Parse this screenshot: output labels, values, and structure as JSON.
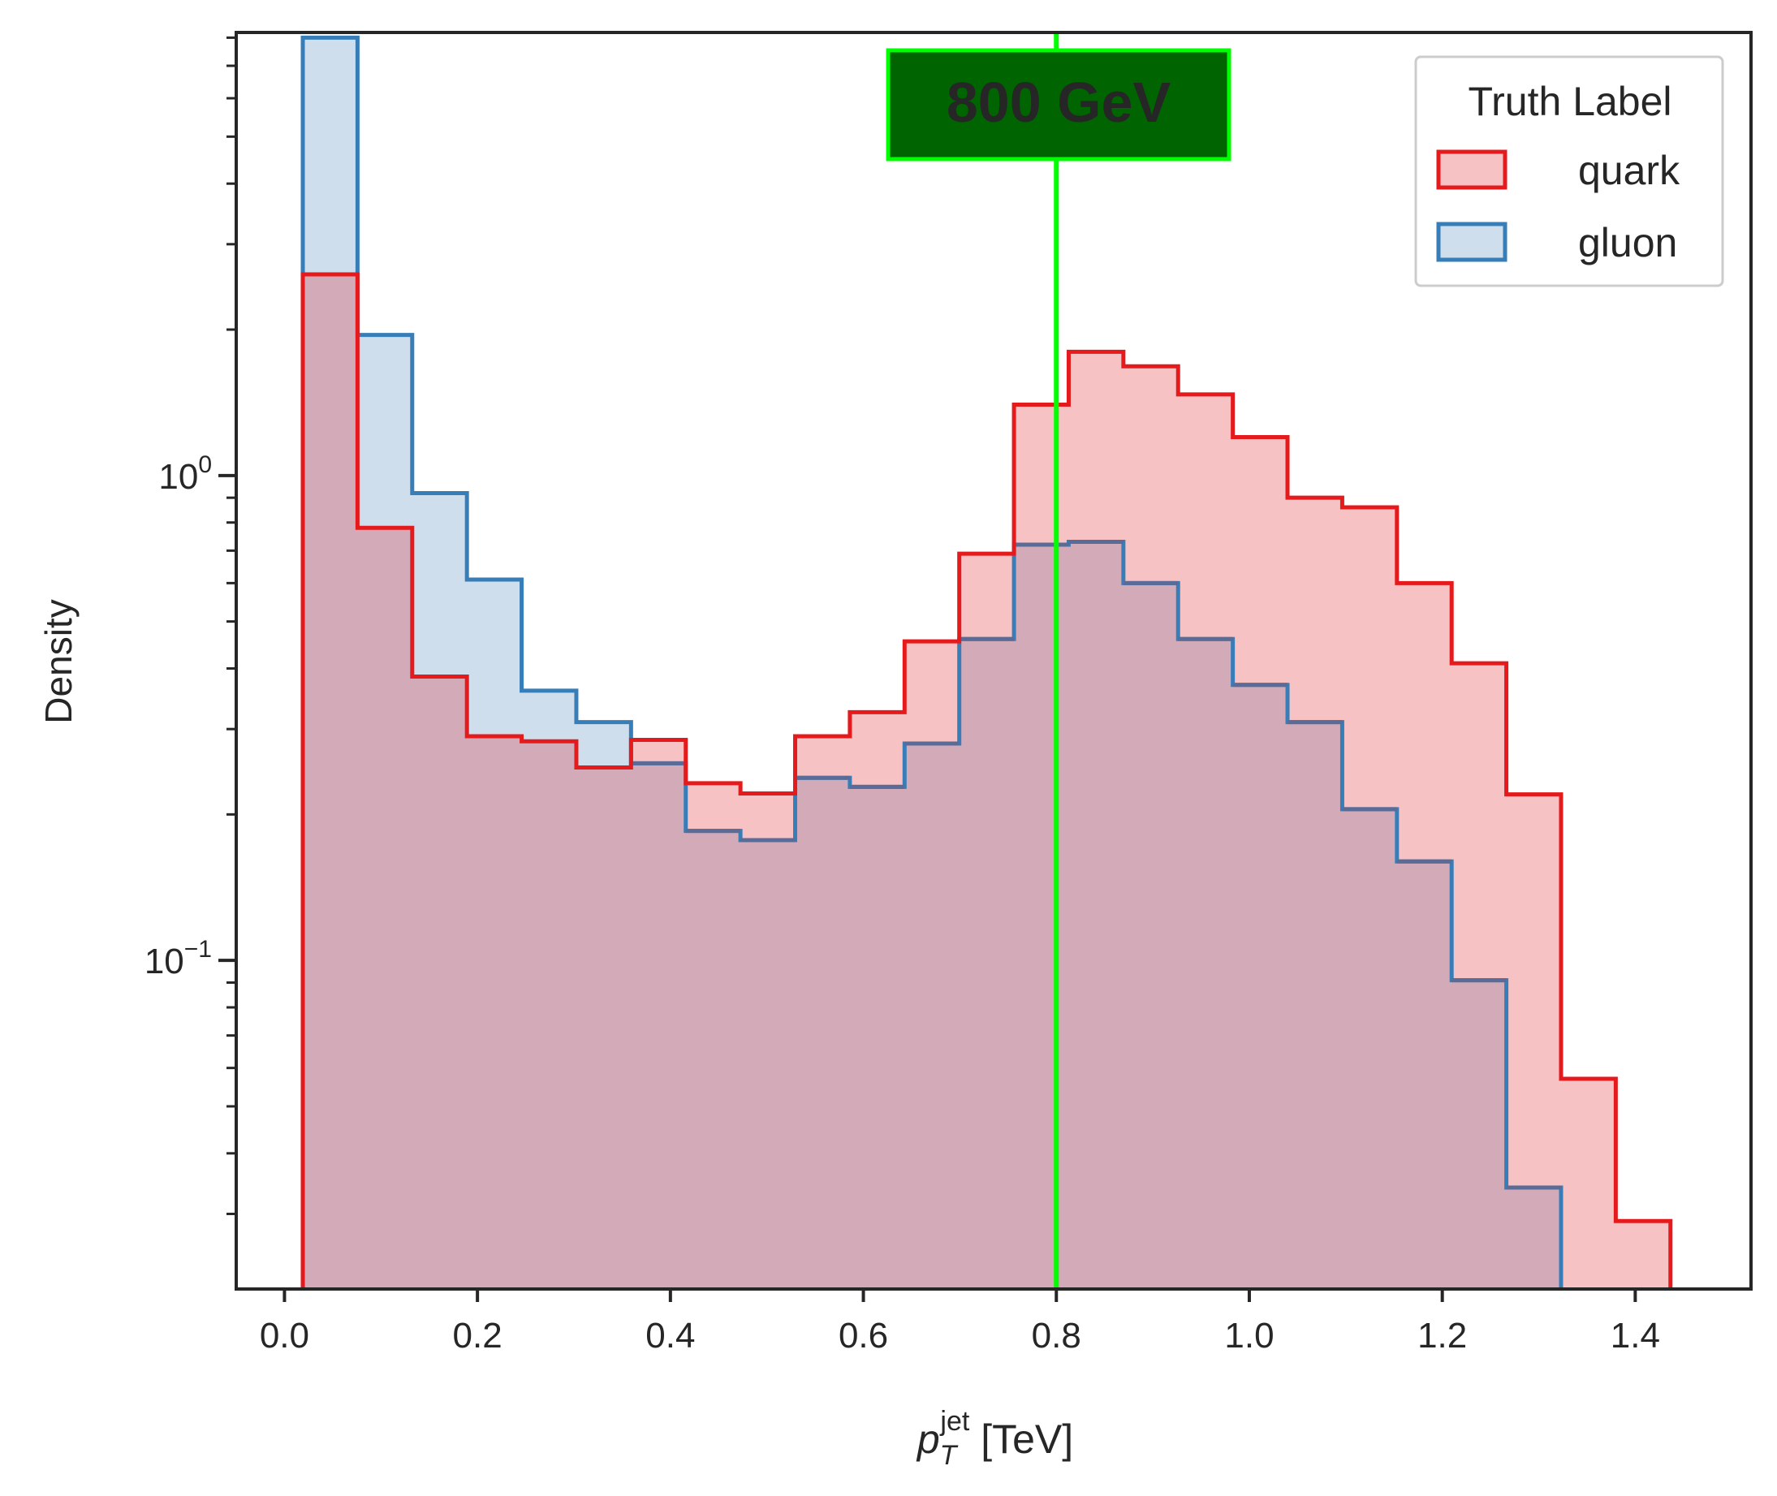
{
  "chart_data": {
    "type": "histogram",
    "xlabel_base": "p",
    "xlabel_sub": "T",
    "xlabel_sup": "jet",
    "xlabel_unit": "[TeV]",
    "ylabel": "Density",
    "xlim": [
      -0.05,
      1.52
    ],
    "ylim": [
      0.021,
      8.2
    ],
    "yscale": "log",
    "x_ticks": [
      0.0,
      0.2,
      0.4,
      0.6,
      0.8,
      1.0,
      1.2,
      1.4
    ],
    "x_tick_labels": [
      "0.0",
      "0.2",
      "0.4",
      "0.6",
      "0.8",
      "1.0",
      "1.2",
      "1.4"
    ],
    "y_major_ticks": [
      {
        "value": 0.1,
        "base": "10",
        "exp": "−1"
      },
      {
        "value": 1,
        "base": "10",
        "exp": "0"
      }
    ],
    "y_minor_ticks": [
      0.03,
      0.04,
      0.05,
      0.06,
      0.07,
      0.08,
      0.09,
      0.2,
      0.3,
      0.4,
      0.5,
      0.6,
      0.7,
      0.8,
      0.9,
      2,
      3,
      4,
      5,
      6,
      7,
      8
    ],
    "bin_edges": [
      0.019,
      0.0757,
      0.1324,
      0.1891,
      0.2458,
      0.3025,
      0.3592,
      0.4159,
      0.4726,
      0.5293,
      0.586,
      0.6427,
      0.6994,
      0.7561,
      0.8128,
      0.8695,
      0.9262,
      0.9829,
      1.0396,
      1.0963,
      1.153,
      1.2097,
      1.2664,
      1.3231,
      1.3798,
      1.4365,
      1.4932
    ],
    "series": [
      {
        "name": "gluon",
        "color": "#377eb8",
        "fill": "#cfdeed",
        "values": [
          8.0,
          1.95,
          0.92,
          0.61,
          0.36,
          0.31,
          0.255,
          0.185,
          0.177,
          0.238,
          0.228,
          0.28,
          0.46,
          0.72,
          0.73,
          0.6,
          0.46,
          0.37,
          0.31,
          0.205,
          0.16,
          0.091,
          0.034,
          0.0,
          0.0,
          0.0
        ]
      },
      {
        "name": "quark",
        "color": "#e41a1c",
        "fill": "#f6c2c3",
        "values": [
          2.6,
          0.78,
          0.385,
          0.29,
          0.283,
          0.25,
          0.285,
          0.232,
          0.221,
          0.29,
          0.325,
          0.455,
          0.69,
          1.4,
          1.8,
          1.68,
          1.47,
          1.2,
          0.9,
          0.86,
          0.6,
          0.41,
          0.22,
          0.057,
          0.029,
          0.0
        ]
      }
    ],
    "overlap_fill": "#d3abb8",
    "gluon_over_quark_edge": "#5a6b97",
    "legend": {
      "title": "Truth Label",
      "entries": [
        "quark",
        "gluon"
      ],
      "placement": "top-right"
    },
    "vline": {
      "x": 0.8,
      "color": "#00ff00",
      "label": "800 GeV",
      "label_bg": "#006400",
      "label_color": "#00ff00"
    },
    "grid": false
  }
}
